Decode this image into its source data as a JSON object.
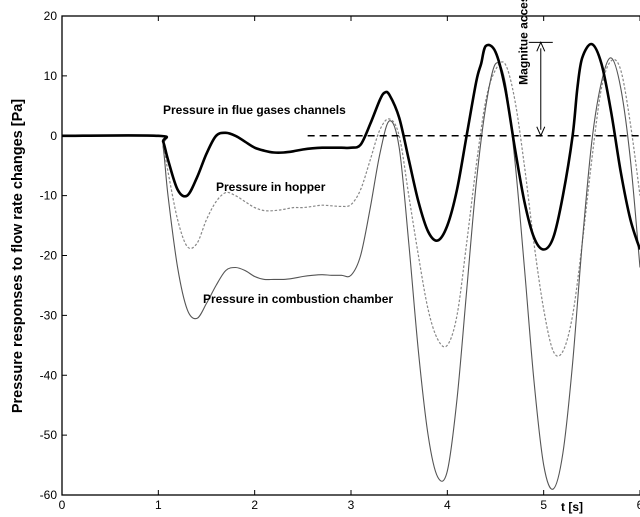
{
  "chart_data": {
    "type": "line",
    "xlabel": "t [s]",
    "ylabel": "Pressure responses to flow rate changes [Pa]",
    "xlim": [
      0,
      6
    ],
    "ylim": [
      -60,
      20
    ],
    "x_ticks": [
      "0",
      "1",
      "2",
      "3",
      "4",
      "5",
      "6"
    ],
    "y_ticks": [
      "20",
      "10",
      "0",
      "-10",
      "-20",
      "-30",
      "-40",
      "-50",
      "-60"
    ],
    "grid": false,
    "series": [
      {
        "name": "Pressure in flue gases channels",
        "color": "#000000",
        "style": "solid-thick",
        "x": [
          0,
          1.0,
          1.05,
          1.1,
          1.2,
          1.3,
          1.4,
          1.5,
          1.6,
          1.7,
          1.8,
          1.9,
          2.0,
          2.1,
          2.2,
          2.3,
          2.4,
          2.5,
          2.6,
          2.7,
          2.8,
          2.9,
          3.0,
          3.1,
          3.2,
          3.3,
          3.35,
          3.4,
          3.5,
          3.6,
          3.7,
          3.8,
          3.9,
          4.0,
          4.1,
          4.2,
          4.3,
          4.35,
          4.4,
          4.5,
          4.6,
          4.7,
          4.8,
          4.9,
          5.0,
          5.1,
          5.2,
          5.3,
          5.35,
          5.4,
          5.5,
          5.6,
          5.7,
          5.8,
          5.9,
          6.0
        ],
        "y": [
          0,
          0,
          -1,
          -4,
          -9,
          -10,
          -7,
          -3,
          0,
          0.5,
          0,
          -1,
          -2,
          -2.5,
          -2.8,
          -2.8,
          -2.6,
          -2.3,
          -2.1,
          -2.0,
          -2.0,
          -2.0,
          -2.0,
          -1.5,
          2,
          6,
          7.2,
          6.8,
          3,
          -4,
          -11,
          -16,
          -17.5,
          -15,
          -9,
          0,
          9,
          12,
          15,
          14,
          8,
          -2,
          -11,
          -17,
          -19,
          -17,
          -10,
          0,
          8,
          13,
          15.3,
          12,
          4,
          -6,
          -14,
          -19
        ]
      },
      {
        "name": "Pressure in hopper",
        "color": "#888888",
        "style": "dashed",
        "x": [
          0,
          1.0,
          1.05,
          1.1,
          1.2,
          1.3,
          1.4,
          1.5,
          1.6,
          1.7,
          1.8,
          1.9,
          2.0,
          2.1,
          2.2,
          2.3,
          2.4,
          2.5,
          2.6,
          2.7,
          2.8,
          2.9,
          3.0,
          3.1,
          3.2,
          3.3,
          3.4,
          3.5,
          3.6,
          3.7,
          3.8,
          3.9,
          4.0,
          4.1,
          4.2,
          4.3,
          4.4,
          4.5,
          4.6,
          4.7,
          4.8,
          4.9,
          5.0,
          5.1,
          5.2,
          5.3,
          5.4,
          5.5,
          5.6,
          5.7,
          5.8,
          5.9,
          6.0
        ],
        "y": [
          0,
          0,
          -1.5,
          -6,
          -14,
          -18.5,
          -18,
          -14,
          -11,
          -9.5,
          -10,
          -11,
          -12,
          -12.5,
          -12.5,
          -12.3,
          -12,
          -12,
          -11.8,
          -11.6,
          -11.7,
          -11.8,
          -11.5,
          -9,
          -4,
          1,
          2.8,
          0,
          -10,
          -20,
          -29,
          -34,
          -35,
          -30,
          -18,
          -5,
          6,
          11,
          12,
          6,
          -5,
          -18,
          -29,
          -36,
          -36,
          -30,
          -18,
          -4,
          8,
          12.5,
          11,
          2,
          -10
        ]
      },
      {
        "name": "Pressure in combustion chamber",
        "color": "#555555",
        "style": "solid-thin",
        "x": [
          0,
          1.0,
          1.05,
          1.1,
          1.2,
          1.3,
          1.4,
          1.5,
          1.6,
          1.7,
          1.8,
          1.9,
          2.0,
          2.1,
          2.2,
          2.3,
          2.4,
          2.5,
          2.6,
          2.7,
          2.8,
          2.9,
          3.0,
          3.1,
          3.2,
          3.3,
          3.4,
          3.5,
          3.6,
          3.7,
          3.8,
          3.9,
          4.0,
          4.1,
          4.2,
          4.3,
          4.4,
          4.5,
          4.6,
          4.7,
          4.8,
          4.9,
          5.0,
          5.1,
          5.2,
          5.3,
          5.4,
          5.5,
          5.6,
          5.7,
          5.8,
          5.9,
          6.0
        ],
        "y": [
          0,
          0,
          -2,
          -10,
          -22,
          -29,
          -30.5,
          -28,
          -25,
          -22.5,
          -22,
          -22.5,
          -23.5,
          -24,
          -24,
          -24,
          -23.8,
          -23.5,
          -23.3,
          -23.2,
          -23.3,
          -23.3,
          -23.3,
          -20,
          -12,
          -3,
          2.5,
          -2,
          -18,
          -36,
          -50,
          -57,
          -56,
          -44,
          -26,
          -8,
          5,
          12,
          9,
          -4,
          -22,
          -41,
          -55,
          -59,
          -53,
          -38,
          -18,
          -1,
          9,
          13,
          8,
          -4,
          -22
        ]
      }
    ],
    "annotations": {
      "label_flue": "Pressure in flue gases channels",
      "label_hopper": "Pressure in hopper",
      "label_combustion": "Pressure in combustion chamber",
      "label_magnitude": "Magnitue access"
    }
  }
}
